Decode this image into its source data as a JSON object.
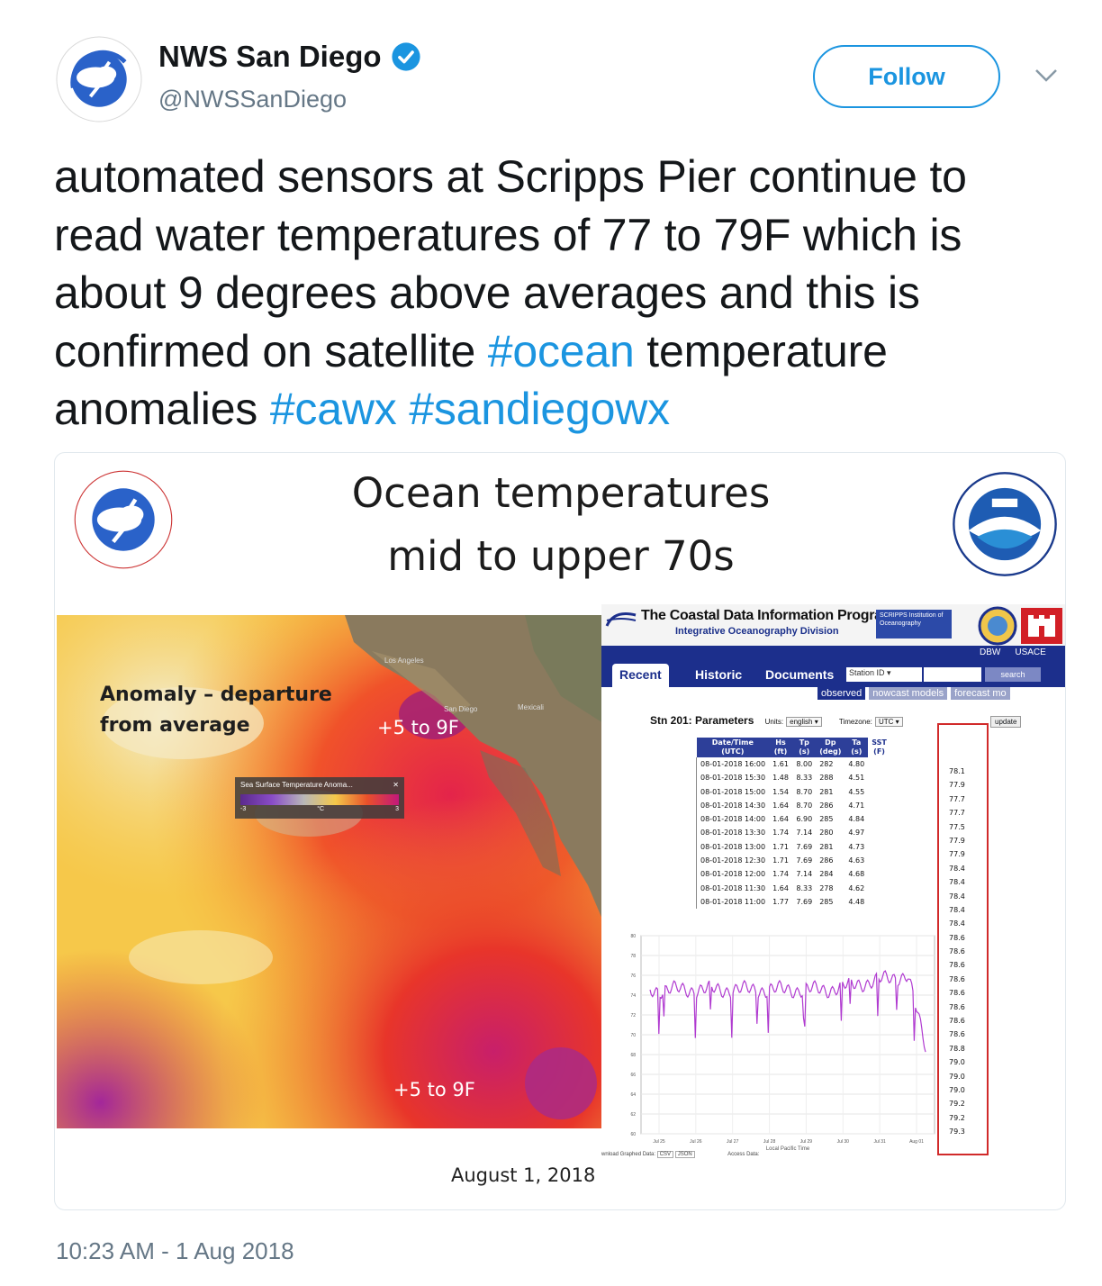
{
  "tweet": {
    "user_name": "NWS San Diego",
    "handle": "@NWSSanDiego",
    "follow_label": "Follow",
    "text_plain": "automated sensors at Scripps Pier continue to read water temperatures of 77 to 79F which is about 9 degrees above averages and this is confirmed on satellite",
    "hashtag_ocean": "#ocean",
    "text_after": " temperature anomalies ",
    "hashtag_cawx": "#cawx",
    "hashtag_sandiegowx": "#sandiegowx",
    "timestamp": "10:23 AM - 1 Aug 2018"
  },
  "colors": {
    "link_blue": "#1b95e0",
    "secondary_text": "#657786",
    "highlight_red": "#d12a2a"
  },
  "slide": {
    "title_line1": "Ocean temperatures",
    "title_line2": "mid to upper 70s",
    "anomaly_label_line1": "Anomaly – departure",
    "anomaly_label_line2": "from average",
    "coast_label": "+5 to 9F",
    "south_label": "+5 to 9F",
    "legend_title": "Sea Surface Temperature Anoma...",
    "legend_close": "✕",
    "legend_min": "-3",
    "legend_unit": "°C",
    "legend_max": "3",
    "place_los_angeles": "Los Angeles",
    "place_san_diego": "San Diego",
    "place_mexicali": "Mexicali",
    "date": "August 1, 2018"
  },
  "cdip": {
    "title": "The Coastal Data Information Program",
    "subtitle": "Integrative Oceanography Division",
    "scripps": "SCRIPPS Institution of Oceanography",
    "dbw": "DBW",
    "usace": "USACE",
    "tabs": [
      "Recent",
      "Historic",
      "Documents"
    ],
    "station_placeholder": "Station ID",
    "search_label": "search",
    "subtabs": [
      "observed",
      "nowcast models",
      "forecast mo"
    ],
    "params_title": "Stn 201: Parameters",
    "units_label": "Units:",
    "units_value": "english",
    "timezone_label": "Timezone:",
    "timezone_value": "UTC",
    "update_label": "update",
    "table_headers": [
      [
        "Date/Time",
        "(UTC)"
      ],
      [
        "Hs",
        "(ft)"
      ],
      [
        "Tp",
        "(s)"
      ],
      [
        "Dp",
        "(deg)"
      ],
      [
        "Ta",
        "(s)"
      ],
      [
        "SST",
        "(F)"
      ]
    ],
    "rows": [
      [
        "08-01-2018 16:00",
        "1.61",
        "8.00",
        "282",
        "4.80"
      ],
      [
        "08-01-2018 15:30",
        "1.48",
        "8.33",
        "288",
        "4.51"
      ],
      [
        "08-01-2018 15:00",
        "1.54",
        "8.70",
        "281",
        "4.55"
      ],
      [
        "08-01-2018 14:30",
        "1.64",
        "8.70",
        "286",
        "4.71"
      ],
      [
        "08-01-2018 14:00",
        "1.64",
        "6.90",
        "285",
        "4.84"
      ],
      [
        "08-01-2018 13:30",
        "1.74",
        "7.14",
        "280",
        "4.97"
      ],
      [
        "08-01-2018 13:00",
        "1.71",
        "7.69",
        "281",
        "4.73"
      ],
      [
        "08-01-2018 12:30",
        "1.71",
        "7.69",
        "286",
        "4.63"
      ],
      [
        "08-01-2018 12:00",
        "1.74",
        "7.14",
        "284",
        "4.68"
      ],
      [
        "08-01-2018 11:30",
        "1.64",
        "8.33",
        "278",
        "4.62"
      ],
      [
        "08-01-2018 11:00",
        "1.77",
        "7.69",
        "285",
        "4.48"
      ]
    ],
    "sst_values": [
      "78.1",
      "77.9",
      "77.7",
      "77.7",
      "77.5",
      "77.9",
      "77.9",
      "78.4",
      "78.4",
      "78.4",
      "78.4",
      "78.4",
      "78.6",
      "78.6",
      "78.6",
      "78.6",
      "78.6",
      "78.6",
      "78.6",
      "78.6",
      "78.8",
      "79.0",
      "79.0",
      "79.0",
      "79.2",
      "79.2",
      "79.3"
    ],
    "chart_x_labels": [
      "Jul 25",
      "Jul 26",
      "Jul 27",
      "Jul 28",
      "Jul 29",
      "Jul 30",
      "Jul 31",
      "Aug 01"
    ],
    "chart_x_title": "Local Pacific Time",
    "chart_y_labels": [
      "80",
      "78",
      "76",
      "74",
      "72",
      "70",
      "68",
      "66",
      "64",
      "62",
      "60"
    ],
    "download_label": "wnload Graphed Data:",
    "access_label": "Access Data:"
  }
}
